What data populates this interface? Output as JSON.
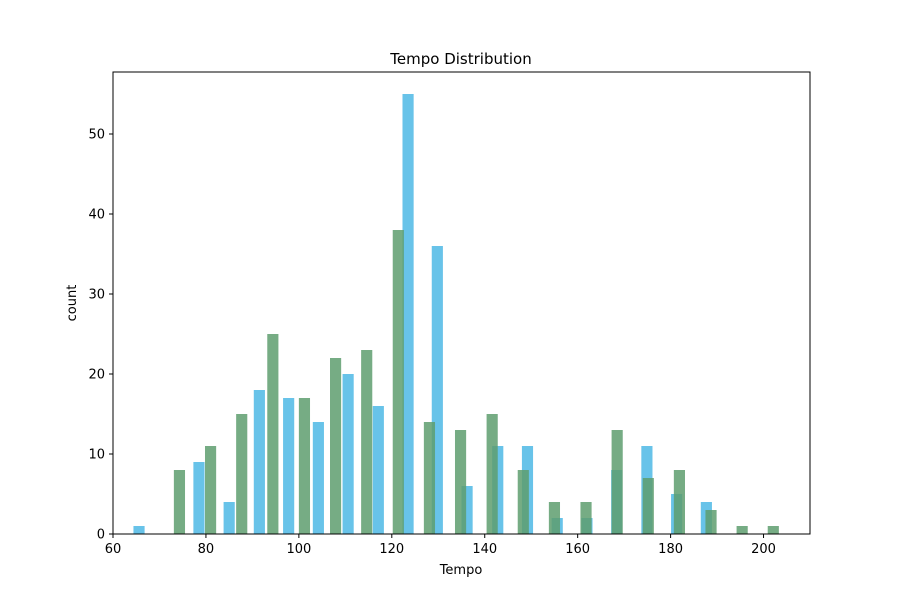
{
  "chart_data": {
    "type": "bar",
    "title": "Tempo Distribution",
    "xlabel": "Tempo",
    "ylabel": "count",
    "xlim": [
      60,
      210
    ],
    "ylim": [
      0,
      57.75
    ],
    "x_ticks": [
      60,
      80,
      100,
      120,
      140,
      160,
      180,
      200
    ],
    "y_ticks": [
      0,
      10,
      20,
      30,
      40,
      50
    ],
    "grid": false,
    "bin_width": 2.4,
    "series": [
      {
        "color": "#4db8e5",
        "bars": [
          {
            "x": 65.6,
            "count": 1
          },
          {
            "x": 78.5,
            "count": 9
          },
          {
            "x": 85.0,
            "count": 4
          },
          {
            "x": 91.5,
            "count": 18
          },
          {
            "x": 97.8,
            "count": 17
          },
          {
            "x": 104.2,
            "count": 14
          },
          {
            "x": 110.6,
            "count": 20
          },
          {
            "x": 117.1,
            "count": 16
          },
          {
            "x": 123.5,
            "count": 55
          },
          {
            "x": 129.8,
            "count": 36
          },
          {
            "x": 136.2,
            "count": 6
          },
          {
            "x": 142.8,
            "count": 11
          },
          {
            "x": 149.2,
            "count": 11
          },
          {
            "x": 155.6,
            "count": 2
          },
          {
            "x": 162.0,
            "count": 2
          },
          {
            "x": 168.4,
            "count": 8
          },
          {
            "x": 174.9,
            "count": 11
          },
          {
            "x": 181.3,
            "count": 5
          },
          {
            "x": 187.7,
            "count": 4
          }
        ]
      },
      {
        "color": "#5e9e6e",
        "bars": [
          {
            "x": 74.3,
            "count": 8
          },
          {
            "x": 81.0,
            "count": 11
          },
          {
            "x": 87.7,
            "count": 15
          },
          {
            "x": 94.4,
            "count": 25
          },
          {
            "x": 101.2,
            "count": 17
          },
          {
            "x": 107.9,
            "count": 22
          },
          {
            "x": 114.6,
            "count": 23
          },
          {
            "x": 121.4,
            "count": 38
          },
          {
            "x": 128.1,
            "count": 14
          },
          {
            "x": 134.8,
            "count": 13
          },
          {
            "x": 141.6,
            "count": 15
          },
          {
            "x": 148.3,
            "count": 8
          },
          {
            "x": 155.0,
            "count": 4
          },
          {
            "x": 161.8,
            "count": 4
          },
          {
            "x": 168.5,
            "count": 13
          },
          {
            "x": 175.2,
            "count": 7
          },
          {
            "x": 181.9,
            "count": 8
          },
          {
            "x": 188.7,
            "count": 3
          },
          {
            "x": 195.4,
            "count": 1
          },
          {
            "x": 202.1,
            "count": 1
          }
        ]
      }
    ]
  }
}
